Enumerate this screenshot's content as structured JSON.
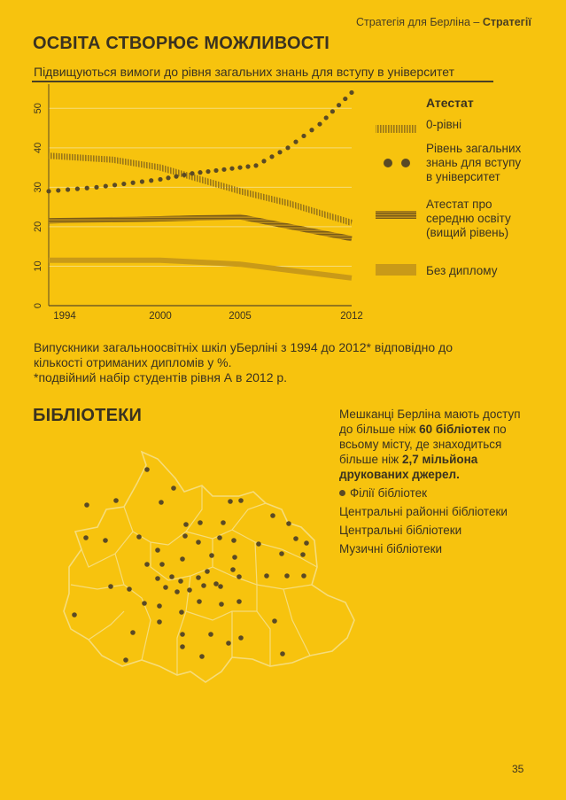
{
  "header": {
    "prefix": "Стратегія для Берліна – ",
    "bold": "Стратегії"
  },
  "education": {
    "title": "ОСВІТА СТВОРЮЄ МОЖЛИВОСТІ",
    "chart_subtitle": "Підвищуються вимоги до рівня загальних знань для вступу в університет"
  },
  "legend": {
    "heading": "Атестат",
    "items": [
      {
        "label": "0-рівні"
      },
      {
        "label_lines": [
          "Рівень загальних",
          "знань для вступу",
          "в університет"
        ]
      },
      {
        "label_lines": [
          "Атестат про",
          "середню освіту",
          "(вищий рівень)"
        ]
      },
      {
        "label": "Без диплому"
      }
    ]
  },
  "caption": {
    "line1": "Випускники загальноосвітніх шкіл уБерліні з 1994 до 2012* відповідно до",
    "line2": "кількості отриманих дипломів у %.",
    "line3": "*подвійний набір студентів рівня А в 2012 р."
  },
  "libraries": {
    "title": "БІБЛІОТЕКИ",
    "info_line1": "Мешканці Берліна мають доступ",
    "info_line2_prefix": "до більше ніж ",
    "info_line2_bold": "60 бібліотек",
    "info_line2_suffix": " по",
    "info_line3": "всьому місту, де знаходиться",
    "info_line4_prefix": "більше ніж ",
    "info_line4_bold": "2,7 мільйона",
    "info_line5_bold": "друкованих джерел.",
    "list": [
      "Філії бібліотек",
      "Центральні районні бібліотеки",
      "Центральні бібліотеки",
      "Музичні бібліотеки"
    ]
  },
  "page_number": "35",
  "colors": {
    "background": "#f7c30e",
    "ink": "#3c3420",
    "series": "#8a6a1a",
    "map_outline": "#f6dc7a",
    "dots": "#5a4a25"
  },
  "chart_data": {
    "type": "line",
    "x_ticks": [
      1994,
      2000,
      2005,
      2012
    ],
    "y_ticks": [
      0,
      10,
      20,
      30,
      40,
      50
    ],
    "xlim": [
      1993,
      2012
    ],
    "ylim": [
      0,
      55
    ],
    "grid": true,
    "legend_position": "right",
    "series": [
      {
        "name": "0-рівні",
        "style": "hatched",
        "points": [
          [
            1993,
            38
          ],
          [
            1997,
            37
          ],
          [
            2000,
            35
          ],
          [
            2005,
            29
          ],
          [
            2008,
            26
          ],
          [
            2012,
            21
          ]
        ]
      },
      {
        "name": "Рівень загальних знань для вступу в університет",
        "style": "dotted",
        "points": [
          [
            1993,
            29
          ],
          [
            1996,
            30
          ],
          [
            2000,
            32
          ],
          [
            2002,
            33.5
          ],
          [
            2004,
            34.5
          ],
          [
            2006,
            35.5
          ],
          [
            2008,
            40
          ],
          [
            2010,
            46
          ],
          [
            2012,
            54
          ]
        ]
      },
      {
        "name": "Атестат про середню освіту (вищий рівень)",
        "style": "striped",
        "points": [
          [
            1993,
            21.5
          ],
          [
            2000,
            22
          ],
          [
            2005,
            22.5
          ],
          [
            2012,
            17
          ]
        ]
      },
      {
        "name": "Без диплому",
        "style": "solid",
        "points": [
          [
            1993,
            11.5
          ],
          [
            2000,
            11.5
          ],
          [
            2005,
            10.5
          ],
          [
            2012,
            7
          ]
        ]
      }
    ]
  },
  "map": {
    "libraries_dots": [
      [
        166,
        530
      ],
      [
        196,
        551
      ],
      [
        98,
        570
      ],
      [
        131,
        565
      ],
      [
        182,
        567
      ],
      [
        260,
        566
      ],
      [
        272,
        565
      ],
      [
        308,
        582
      ],
      [
        326,
        591
      ],
      [
        97,
        607
      ],
      [
        119,
        610
      ],
      [
        157,
        606
      ],
      [
        210,
        592
      ],
      [
        226,
        590
      ],
      [
        252,
        590
      ],
      [
        178,
        621
      ],
      [
        209,
        605
      ],
      [
        224,
        612
      ],
      [
        248,
        607
      ],
      [
        264,
        610
      ],
      [
        334,
        608
      ],
      [
        346,
        613
      ],
      [
        166,
        637
      ],
      [
        183,
        637
      ],
      [
        206,
        631
      ],
      [
        239,
        627
      ],
      [
        265,
        629
      ],
      [
        292,
        614
      ],
      [
        318,
        625
      ],
      [
        342,
        626
      ],
      [
        178,
        653
      ],
      [
        194,
        651
      ],
      [
        204,
        656
      ],
      [
        224,
        652
      ],
      [
        234,
        645
      ],
      [
        244,
        659
      ],
      [
        263,
        643
      ],
      [
        270,
        651
      ],
      [
        125,
        662
      ],
      [
        146,
        665
      ],
      [
        187,
        663
      ],
      [
        200,
        668
      ],
      [
        214,
        666
      ],
      [
        230,
        661
      ],
      [
        249,
        662
      ],
      [
        301,
        650
      ],
      [
        324,
        650
      ],
      [
        343,
        650
      ],
      [
        163,
        681
      ],
      [
        180,
        684
      ],
      [
        205,
        691
      ],
      [
        225,
        679
      ],
      [
        250,
        682
      ],
      [
        270,
        679
      ],
      [
        180,
        702
      ],
      [
        310,
        701
      ],
      [
        84,
        694
      ],
      [
        150,
        714
      ],
      [
        238,
        716
      ],
      [
        258,
        726
      ],
      [
        272,
        720
      ],
      [
        206,
        730
      ],
      [
        228,
        741
      ],
      [
        319,
        738
      ],
      [
        142,
        745
      ],
      [
        206,
        716
      ]
    ]
  }
}
